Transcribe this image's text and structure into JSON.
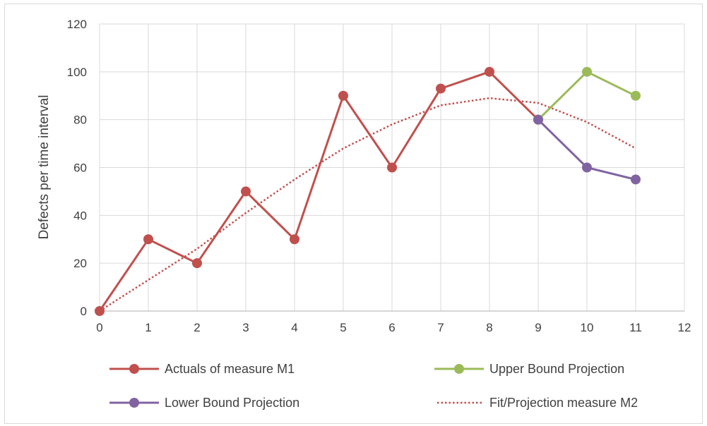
{
  "chart_data": {
    "type": "line",
    "title": "",
    "xlabel": "",
    "ylabel": "Defects per time interval",
    "xlim": [
      0,
      12
    ],
    "ylim": [
      0,
      120
    ],
    "xticks": [
      0,
      1,
      2,
      3,
      4,
      5,
      6,
      7,
      8,
      9,
      10,
      11,
      12
    ],
    "yticks": [
      0,
      20,
      40,
      60,
      80,
      100,
      120
    ],
    "grid": true,
    "legend_position": "bottom",
    "series": [
      {
        "name": "Actuals of measure M1",
        "color": "#c0504d",
        "style": "solid",
        "markers": true,
        "x": [
          0,
          1,
          2,
          3,
          4,
          5,
          6,
          7,
          8,
          9
        ],
        "y": [
          0,
          30,
          20,
          50,
          30,
          90,
          60,
          93,
          100,
          80
        ]
      },
      {
        "name": "Upper Bound Projection",
        "color": "#9bbb59",
        "style": "solid",
        "markers": true,
        "x": [
          9,
          10,
          11
        ],
        "y": [
          80,
          100,
          90
        ]
      },
      {
        "name": "Lower Bound Projection",
        "color": "#8064a2",
        "style": "solid",
        "markers": true,
        "x": [
          9,
          10,
          11
        ],
        "y": [
          80,
          60,
          55
        ]
      },
      {
        "name": "Fit/Projection measure M2",
        "color": "#c0504d",
        "style": "dotted",
        "markers": false,
        "x": [
          0,
          1,
          2,
          3,
          4,
          5,
          6,
          7,
          8,
          9,
          10,
          11
        ],
        "y": [
          0,
          13,
          26,
          41,
          55,
          68,
          78,
          86,
          89,
          87,
          79,
          68
        ]
      }
    ]
  }
}
